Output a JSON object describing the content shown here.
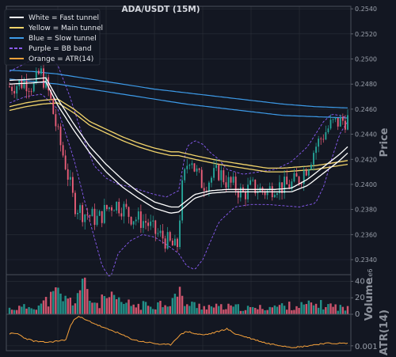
{
  "colors": {
    "background": "#131722",
    "frame": "#4a4f5a",
    "grid": "#2a2f3a",
    "up": "#26a69a",
    "down": "#ef5f7a",
    "fast": "#ffffff",
    "main": "#f2d46b",
    "slow": "#3d9be9",
    "bb": "#8b5cf6",
    "atr": "#f7a23b"
  },
  "chart_data": [
    {
      "type": "candlestick",
      "title": "ADA/USDT (15M)",
      "ylabel": "Price",
      "ylim": [
        0.2328,
        0.2542
      ],
      "yticks": [
        "0.2540",
        "0.2520",
        "0.2500",
        "0.2480",
        "0.2460",
        "0.2440",
        "0.2420",
        "0.2400",
        "0.2380",
        "0.2360",
        "0.2340"
      ],
      "legend_position": "top-left",
      "legend": [
        {
          "label": "White = Fast tunnel",
          "color": "#ffffff",
          "dash": false
        },
        {
          "label": "Yellow = Main tunnel",
          "color": "#f2d46b",
          "dash": false
        },
        {
          "label": "Blue = Slow tunnel",
          "color": "#3d9be9",
          "dash": false
        },
        {
          "label": "Purple = BB band",
          "color": "#8b5cf6",
          "dash": true
        },
        {
          "label": "Orange = ATR(14)",
          "color": "#f7a23b",
          "dash": false
        }
      ],
      "price_anchors": {
        "x": [
          0,
          10,
          20,
          30,
          38,
          45,
          50,
          60,
          70,
          80,
          90,
          100,
          110,
          120,
          130,
          140,
          150,
          160,
          170,
          180,
          190,
          200,
          208,
          214,
          220,
          225,
          230,
          240,
          250,
          260,
          270,
          280,
          290,
          300,
          310,
          320,
          330,
          340,
          350,
          360,
          370,
          380,
          390,
          400,
          410,
          420
        ],
        "y": [
          0.2478,
          0.248,
          0.2482,
          0.2478,
          0.249,
          0.248,
          0.247,
          0.244,
          0.2415,
          0.2385,
          0.2378,
          0.2375,
          0.2372,
          0.238,
          0.2385,
          0.2382,
          0.2375,
          0.2372,
          0.237,
          0.2362,
          0.2358,
          0.2352,
          0.2348,
          0.2395,
          0.2415,
          0.2425,
          0.2412,
          0.24,
          0.2405,
          0.241,
          0.2402,
          0.2398,
          0.2392,
          0.2398,
          0.2396,
          0.2394,
          0.24,
          0.2398,
          0.24,
          0.2405,
          0.2415,
          0.243,
          0.244,
          0.2448,
          0.245,
          0.2452
        ]
      },
      "fast_tunnel": [
        {
          "x": [
            0,
            30,
            45,
            60,
            80,
            100,
            120,
            140,
            160,
            180,
            200,
            210,
            230,
            250,
            270,
            300,
            330,
            350,
            370,
            390,
            410,
            420
          ],
          "y": [
            0.2483,
            0.2484,
            0.2485,
            0.2468,
            0.2448,
            0.243,
            0.2416,
            0.2404,
            0.2394,
            0.2386,
            0.2382,
            0.2382,
            0.2392,
            0.2395,
            0.2396,
            0.2396,
            0.2396,
            0.2397,
            0.2404,
            0.2414,
            0.2424,
            0.243
          ]
        },
        {
          "x": [
            0,
            30,
            45,
            60,
            80,
            100,
            120,
            140,
            160,
            180,
            200,
            210,
            230,
            250,
            270,
            300,
            330,
            350,
            370,
            390,
            410,
            420
          ],
          "y": [
            0.248,
            0.2481,
            0.2482,
            0.2463,
            0.2443,
            0.2425,
            0.241,
            0.2398,
            0.2389,
            0.2381,
            0.2377,
            0.2378,
            0.2389,
            0.2393,
            0.2394,
            0.2394,
            0.2394,
            0.2394,
            0.2399,
            0.2409,
            0.2419,
            0.2425
          ]
        }
      ],
      "main_tunnel": [
        {
          "x": [
            0,
            20,
            40,
            60,
            80,
            100,
            120,
            140,
            160,
            180,
            200,
            210,
            230,
            260,
            290,
            320,
            340,
            360,
            380,
            400,
            420
          ],
          "y": [
            0.2462,
            0.2465,
            0.2467,
            0.2468,
            0.246,
            0.245,
            0.2444,
            0.2438,
            0.2433,
            0.2429,
            0.2426,
            0.2426,
            0.2423,
            0.2419,
            0.2416,
            0.2413,
            0.2413,
            0.2414,
            0.2415,
            0.2417,
            0.2419
          ]
        },
        {
          "x": [
            0,
            20,
            40,
            60,
            80,
            100,
            120,
            140,
            160,
            180,
            200,
            210,
            230,
            260,
            290,
            320,
            340,
            360,
            380,
            400,
            420
          ],
          "y": [
            0.2459,
            0.2462,
            0.2464,
            0.2465,
            0.2457,
            0.2447,
            0.2441,
            0.2435,
            0.243,
            0.2426,
            0.2423,
            0.2423,
            0.242,
            0.2416,
            0.2413,
            0.241,
            0.241,
            0.2411,
            0.2412,
            0.2414,
            0.2416
          ]
        }
      ],
      "slow_tunnel": [
        {
          "x": [
            0,
            30,
            60,
            100,
            140,
            180,
            220,
            260,
            300,
            340,
            380,
            420
          ],
          "y": [
            0.2491,
            0.249,
            0.2488,
            0.2484,
            0.248,
            0.2476,
            0.2473,
            0.247,
            0.2467,
            0.2464,
            0.2462,
            0.2461
          ]
        },
        {
          "x": [
            0,
            30,
            60,
            100,
            140,
            180,
            220,
            260,
            300,
            340,
            380,
            420
          ],
          "y": [
            0.2484,
            0.2482,
            0.248,
            0.2476,
            0.2472,
            0.2468,
            0.2464,
            0.2461,
            0.2458,
            0.2455,
            0.2454,
            0.2453
          ]
        }
      ],
      "bb_upper": {
        "x": [
          0,
          15,
          30,
          45,
          60,
          75,
          90,
          105,
          120,
          135,
          150,
          165,
          180,
          195,
          210,
          220,
          230,
          240,
          250,
          260,
          270,
          290,
          310,
          330,
          350,
          370,
          390,
          400,
          410,
          420
        ],
        "y": [
          0.249,
          0.2495,
          0.25,
          0.2505,
          0.2495,
          0.247,
          0.244,
          0.2415,
          0.2405,
          0.24,
          0.2398,
          0.2395,
          0.2392,
          0.239,
          0.2395,
          0.243,
          0.2435,
          0.2432,
          0.2425,
          0.242,
          0.2412,
          0.2408,
          0.241,
          0.2412,
          0.2418,
          0.243,
          0.245,
          0.2456,
          0.2455,
          0.2453
        ]
      },
      "bb_lower": {
        "x": [
          0,
          20,
          40,
          60,
          80,
          100,
          115,
          125,
          135,
          150,
          165,
          180,
          195,
          210,
          220,
          230,
          240,
          250,
          260,
          280,
          300,
          320,
          340,
          360,
          380,
          390,
          400,
          410,
          420
        ],
        "y": [
          0.2465,
          0.247,
          0.2472,
          0.246,
          0.242,
          0.237,
          0.2335,
          0.2325,
          0.2345,
          0.2355,
          0.236,
          0.2358,
          0.2352,
          0.2345,
          0.2335,
          0.2332,
          0.234,
          0.2355,
          0.237,
          0.2382,
          0.2384,
          0.2384,
          0.2383,
          0.2382,
          0.2385,
          0.2398,
          0.242,
          0.244,
          0.245
        ]
      },
      "candle_count": 140
    },
    {
      "type": "bar",
      "ylabel": "Volume",
      "scale_label": "1e6",
      "ylim": [
        0,
        48
      ],
      "yticks": [
        "0",
        "20",
        "40"
      ],
      "anchors": {
        "x": [
          0,
          20,
          40,
          60,
          70,
          80,
          90,
          100,
          110,
          120,
          140,
          160,
          180,
          200,
          210,
          220,
          240,
          260,
          280,
          300,
          320,
          340,
          360,
          380,
          400,
          420
        ],
        "y": [
          8,
          10,
          14,
          30,
          20,
          18,
          44,
          22,
          14,
          24,
          16,
          12,
          14,
          18,
          30,
          14,
          12,
          10,
          10,
          8,
          10,
          12,
          12,
          14,
          12,
          8
        ]
      }
    },
    {
      "type": "line",
      "ylabel": "ATR(14)",
      "ylim": [
        0.0006,
        0.0036
      ],
      "yticks": [
        "0.001"
      ],
      "x": [
        0,
        10,
        20,
        30,
        40,
        50,
        60,
        70,
        75,
        80,
        85,
        90,
        95,
        100,
        110,
        120,
        130,
        140,
        150,
        160,
        170,
        180,
        190,
        200,
        210,
        220,
        230,
        240,
        250,
        260,
        270,
        280,
        290,
        300,
        310,
        320,
        330,
        340,
        350,
        360,
        370,
        380,
        390,
        400,
        410,
        420
      ],
      "y": [
        0.002,
        0.002,
        0.0016,
        0.0014,
        0.0013,
        0.0013,
        0.0014,
        0.0015,
        0.0025,
        0.0032,
        0.0034,
        0.0033,
        0.0031,
        0.003,
        0.0027,
        0.0024,
        0.0022,
        0.0019,
        0.0016,
        0.0014,
        0.0013,
        0.0012,
        0.0011,
        0.0011,
        0.0018,
        0.0022,
        0.002,
        0.0019,
        0.002,
        0.0022,
        0.0024,
        0.002,
        0.0018,
        0.0016,
        0.0014,
        0.0012,
        0.0011,
        0.001,
        0.0009,
        0.0009,
        0.001,
        0.0011,
        0.0012,
        0.0012,
        0.0012,
        0.0012
      ]
    }
  ]
}
